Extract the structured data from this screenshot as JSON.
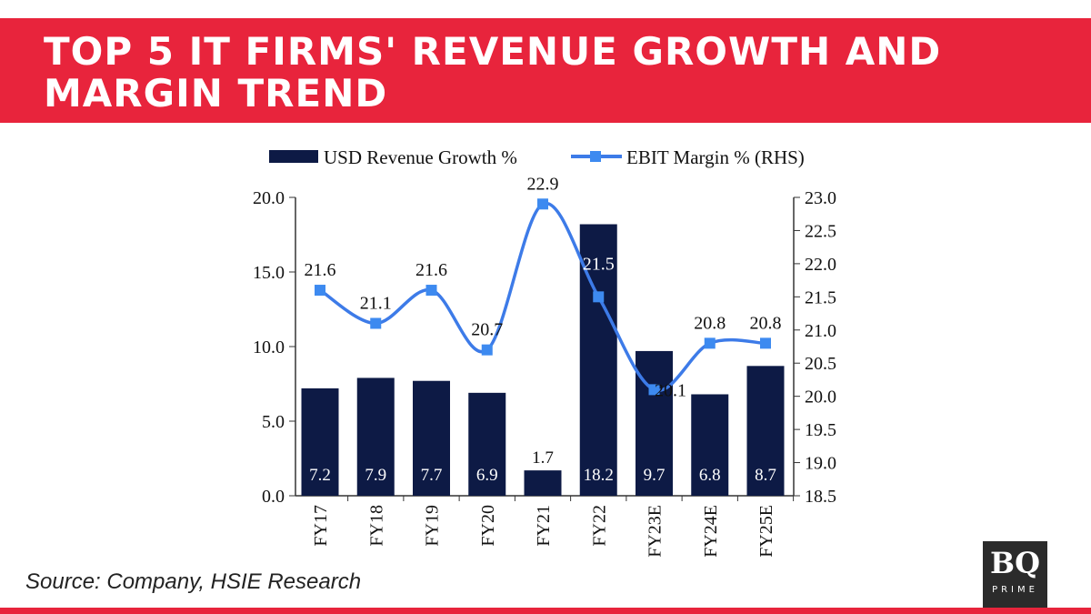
{
  "title": "TOP 5 IT FIRMS' REVENUE GROWTH AND MARGIN TREND",
  "source": "Source: Company, HSIE Research",
  "logo": {
    "main": "BQ",
    "sub": "PRIME"
  },
  "colors": {
    "banner": "#e8243c",
    "bar": "#0d1a45",
    "line": "#3d7be8",
    "marker": "#3d8af0"
  },
  "chart_data": {
    "type": "bar+line",
    "categories": [
      "FY17",
      "FY18",
      "FY19",
      "FY20",
      "FY21",
      "FY22",
      "FY23E",
      "FY24E",
      "FY25E"
    ],
    "series": [
      {
        "name": "USD Revenue Growth %",
        "type": "bar",
        "axis": "left",
        "values": [
          7.2,
          7.9,
          7.7,
          6.9,
          1.7,
          18.2,
          9.7,
          6.8,
          8.7
        ]
      },
      {
        "name": "EBIT Margin % (RHS)",
        "type": "line",
        "axis": "right",
        "smooth": true,
        "values": [
          21.6,
          21.1,
          21.6,
          20.7,
          22.9,
          21.5,
          20.1,
          20.8,
          20.8
        ]
      }
    ],
    "left_axis": {
      "ylim": [
        0,
        20
      ],
      "ticks": [
        "0.0",
        "5.0",
        "10.0",
        "15.0",
        "20.0"
      ]
    },
    "right_axis": {
      "ylim": [
        18.5,
        23.0
      ],
      "ticks": [
        "18.5",
        "19.0",
        "19.5",
        "20.0",
        "20.5",
        "21.0",
        "21.5",
        "22.0",
        "22.5",
        "23.0"
      ]
    },
    "legend": "top",
    "grid": false
  }
}
